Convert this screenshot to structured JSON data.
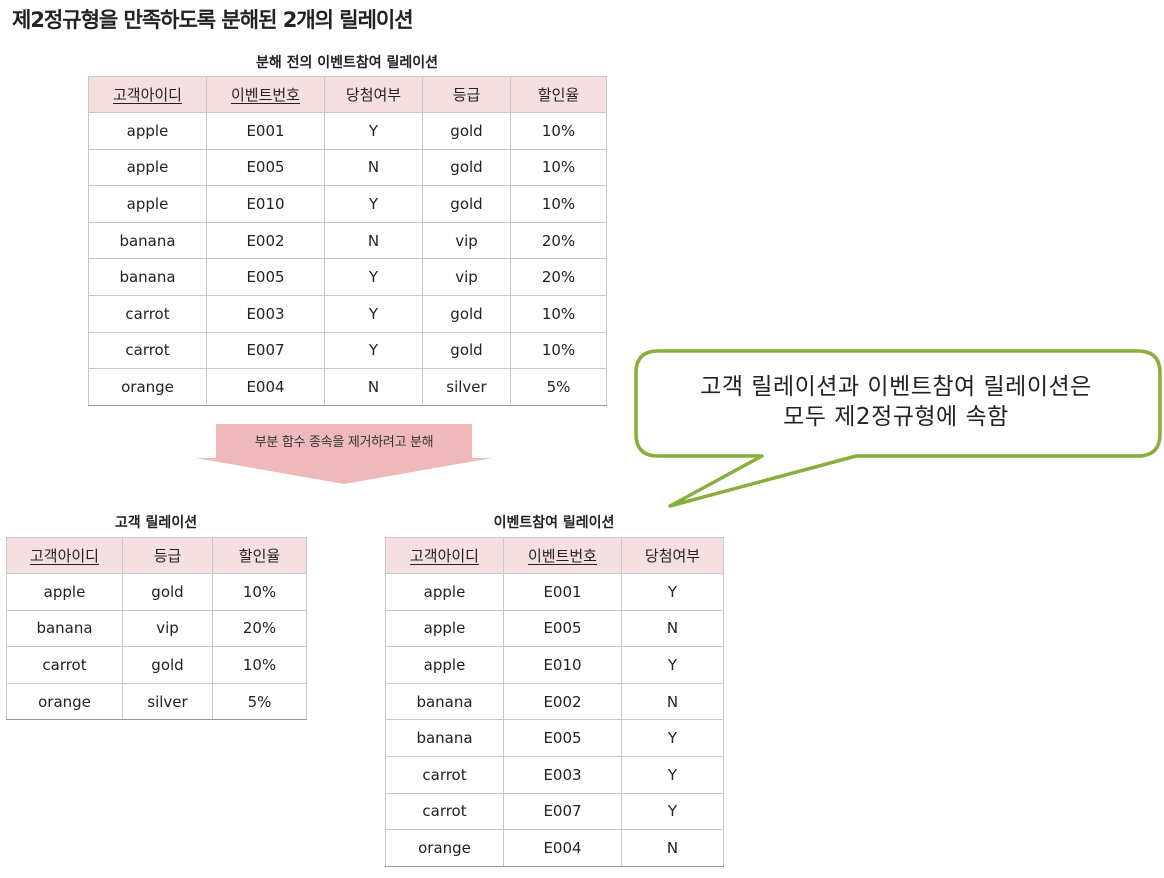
{
  "title": "제2정규형을 만족하도록 분해된 2개의 릴레이션",
  "before": {
    "caption": "분해 전의 이벤트참여 릴레이션",
    "headers": [
      "고객아이디",
      "이벤트번호",
      "당첨여부",
      "등급",
      "할인율"
    ],
    "rows": [
      [
        "apple",
        "E001",
        "Y",
        "gold",
        "10%"
      ],
      [
        "apple",
        "E005",
        "N",
        "gold",
        "10%"
      ],
      [
        "apple",
        "E010",
        "Y",
        "gold",
        "10%"
      ],
      [
        "banana",
        "E002",
        "N",
        "vip",
        "20%"
      ],
      [
        "banana",
        "E005",
        "Y",
        "vip",
        "20%"
      ],
      [
        "carrot",
        "E003",
        "Y",
        "gold",
        "10%"
      ],
      [
        "carrot",
        "E007",
        "Y",
        "gold",
        "10%"
      ],
      [
        "orange",
        "E004",
        "N",
        "silver",
        "5%"
      ]
    ]
  },
  "arrow_label": "부분 함수 종속을 제거하려고 분해",
  "callout": {
    "line1": "고객 릴레이션과 이벤트참여 릴레이션은",
    "line2": "모두 제2정규형에 속함",
    "border_color": "#8aae3c"
  },
  "customer": {
    "caption": "고객 릴레이션",
    "headers": [
      "고객아이디",
      "등급",
      "할인율"
    ],
    "rows": [
      [
        "apple",
        "gold",
        "10%"
      ],
      [
        "banana",
        "vip",
        "20%"
      ],
      [
        "carrot",
        "gold",
        "10%"
      ],
      [
        "orange",
        "silver",
        "5%"
      ]
    ]
  },
  "event": {
    "caption": "이벤트참여 릴레이션",
    "headers": [
      "고객아이디",
      "이벤트번호",
      "당첨여부"
    ],
    "rows": [
      [
        "apple",
        "E001",
        "Y"
      ],
      [
        "apple",
        "E005",
        "N"
      ],
      [
        "apple",
        "E010",
        "Y"
      ],
      [
        "banana",
        "E002",
        "N"
      ],
      [
        "banana",
        "E005",
        "Y"
      ],
      [
        "carrot",
        "E003",
        "Y"
      ],
      [
        "carrot",
        "E007",
        "Y"
      ],
      [
        "orange",
        "E004",
        "N"
      ]
    ]
  },
  "colors": {
    "header_bg": "#f6dfe0",
    "arrow": "#efb9bb"
  }
}
